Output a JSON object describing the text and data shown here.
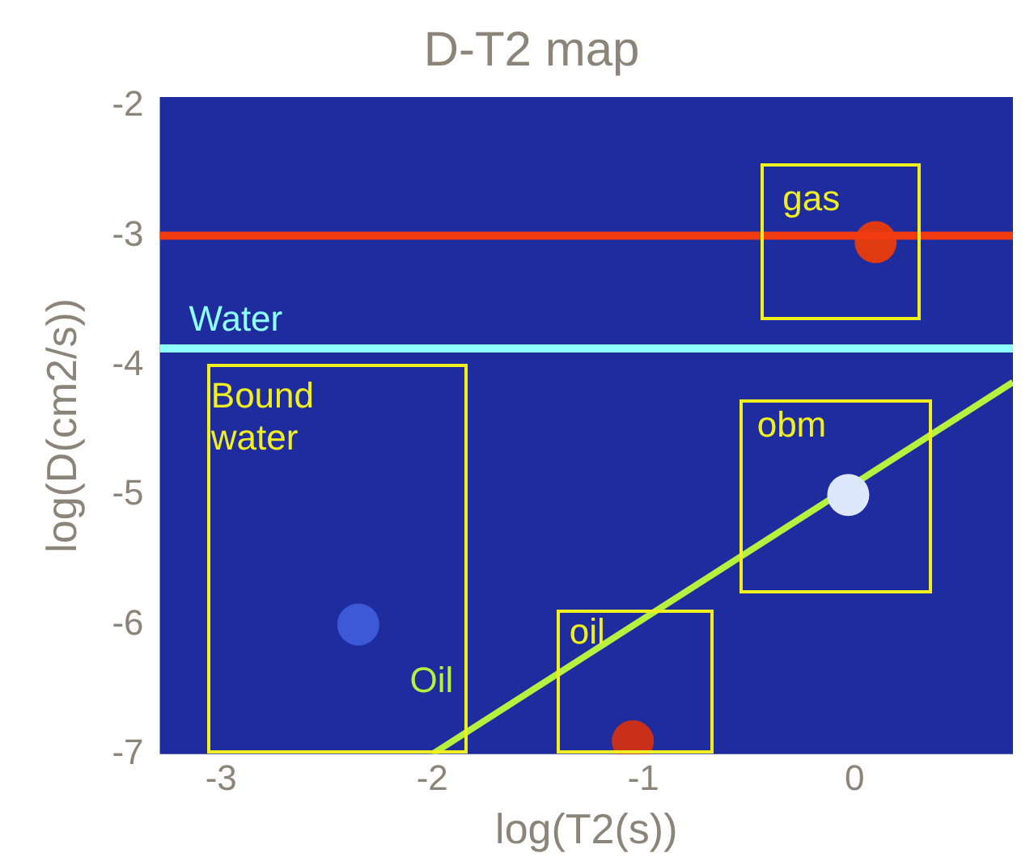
{
  "chart_data": {
    "type": "scatter",
    "title": "D-T2 map",
    "xlabel": "log(T2(s))",
    "ylabel": "log(D(cm2/s))",
    "xlim": [
      -3.29,
      0.75
    ],
    "ylim": [
      -7,
      -1.93
    ],
    "xticks": [
      -3,
      -2,
      -1,
      0
    ],
    "yticks": [
      -2,
      -3,
      -4,
      -5,
      -6,
      -7
    ],
    "grid": false,
    "legend": false,
    "series": [
      {
        "x": [
          0.1,
          -0.03,
          -1.05,
          -2.35
        ],
        "values": [
          -3.05,
          -5.0,
          -6.9,
          -6.0
        ],
        "colors": [
          "#e03a10",
          "#dde8ff",
          "#c8301a",
          "#3c5ad8"
        ],
        "marker": "circle"
      },
      {
        "type": "line",
        "name": "Oil",
        "color": "#b8f040",
        "x": [
          -2,
          0.75
        ],
        "values": [
          -7,
          -4.13
        ],
        "marker": "none"
      }
    ],
    "ref_lines": [
      {
        "axis": "y",
        "value": -3.0,
        "color": "#f03a10"
      },
      {
        "axis": "y",
        "value": -3.87,
        "label": "Water",
        "color": "#90ffff"
      }
    ],
    "annotations": [
      "gas",
      "Bound water",
      "obm",
      "oil"
    ]
  }
}
